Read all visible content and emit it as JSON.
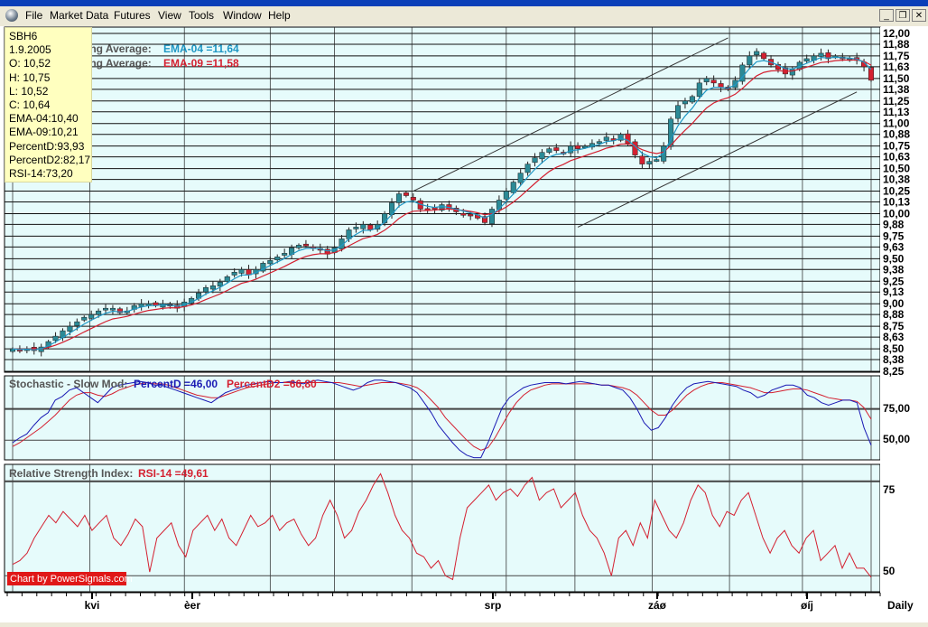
{
  "window": {
    "menu": [
      "File",
      "Market Data",
      "Futures",
      "View",
      "Tools",
      "Window",
      "Help"
    ],
    "controls": {
      "minimize": "_",
      "restore": "❐",
      "close": "✕"
    }
  },
  "legend": [
    "SBH6",
    "1.9.2005",
    "O: 10,52",
    "H: 10,75",
    "L: 10,52",
    "C: 10,64",
    "EMA-04:10,40",
    "EMA-09:10,21",
    "PercentD:93,93",
    "PercentD2:82,17",
    "RSI-14:73,20"
  ],
  "price_panel": {
    "title_fragment_1": "ing Average:",
    "title_fragment_2": "ing Average:",
    "ema4_label": "EMA-04 =11,64",
    "ema9_label": "EMA-09 =11,58"
  },
  "stoch_panel": {
    "title": "Stochastic - Slow Mod:",
    "pd_label": "PercentD =46,00",
    "pd2_label": "PercentD2 =66,80",
    "ticks": [
      "75,00",
      "50,00"
    ]
  },
  "rsi_panel": {
    "title": "Relative Strength Index:",
    "rsi_label": "RSI-14 =49,61",
    "ticks": [
      "75",
      "50"
    ],
    "credit": "Chart by PowerSignals.com"
  },
  "x_axis": {
    "month_labels": [
      "kvi",
      "èer",
      "srp",
      "záø",
      "øíj"
    ],
    "period": "Daily"
  },
  "colors": {
    "background": "#e6fbfb",
    "up_candle": "#2b8a96",
    "down_candle": "#d42030",
    "ema4": "#1f97c4",
    "ema9": "#d42030",
    "percentD": "#1a1ab4",
    "percentD2": "#d42030",
    "rsi": "#d42030"
  },
  "chart_data": [
    {
      "type": "candlestick",
      "symbol": "SBH6",
      "y_ticks": [
        "12,00",
        "11,88",
        "11,75",
        "11,63",
        "11,50",
        "11,38",
        "11,25",
        "11,13",
        "11,00",
        "10,88",
        "10,75",
        "10,63",
        "10,50",
        "10,38",
        "10,25",
        "10,13",
        "10,00",
        "9,88",
        "9,75",
        "9,63",
        "9,50",
        "9,38",
        "9,25",
        "9,13",
        "9,00",
        "8,88",
        "8,75",
        "8,63",
        "8,50",
        "8,38",
        "8,25"
      ],
      "ylim": [
        8.25,
        12.0
      ],
      "x_labels": [
        "kvi",
        "èer",
        "srp",
        "záø",
        "øíj"
      ],
      "closes": [
        8.5,
        8.48,
        8.5,
        8.48,
        8.52,
        8.58,
        8.64,
        8.7,
        8.75,
        8.8,
        8.85,
        8.88,
        8.92,
        8.95,
        8.95,
        8.9,
        8.92,
        8.98,
        9.0,
        9.0,
        8.98,
        9.0,
        8.98,
        8.95,
        9.02,
        9.06,
        9.12,
        9.18,
        9.2,
        9.24,
        9.3,
        9.35,
        9.38,
        9.32,
        9.38,
        9.45,
        9.48,
        9.52,
        9.56,
        9.62,
        9.65,
        9.65,
        9.62,
        9.6,
        9.55,
        9.62,
        9.72,
        9.82,
        9.85,
        9.88,
        9.82,
        9.88,
        10.0,
        10.12,
        10.22,
        10.2,
        10.15,
        10.05,
        10.05,
        10.05,
        10.1,
        10.05,
        10.02,
        10.0,
        9.98,
        9.95,
        9.9,
        10.05,
        10.15,
        10.25,
        10.35,
        10.45,
        10.55,
        10.62,
        10.68,
        10.72,
        10.7,
        10.68,
        10.75,
        10.72,
        10.75,
        10.78,
        10.8,
        10.85,
        10.82,
        10.88,
        10.78,
        10.65,
        10.55,
        10.58,
        10.6,
        10.75,
        11.05,
        11.2,
        11.25,
        11.3,
        11.45,
        11.5,
        11.45,
        11.4,
        11.38,
        11.48,
        11.65,
        11.75,
        11.8,
        11.72,
        11.65,
        11.6,
        11.55,
        11.6,
        11.68,
        11.72,
        11.75,
        11.78,
        11.72,
        11.75,
        11.72,
        11.72,
        11.7,
        11.63,
        11.48
      ],
      "series": [
        {
          "name": "EMA-04",
          "last": 11.64
        },
        {
          "name": "EMA-09",
          "last": 11.58
        }
      ],
      "legend_values": {
        "O": 10.52,
        "H": 10.75,
        "L": 10.52,
        "C": 10.64,
        "EMA-04": 10.4,
        "EMA-09": 10.21
      }
    },
    {
      "type": "line",
      "title": "Stochastic - Slow Mod:",
      "y_ticks": [
        "75,00",
        "50,00"
      ],
      "ylim": [
        35,
        100
      ],
      "series": [
        {
          "name": "PercentD",
          "last": 46.0,
          "values": [
            48,
            52,
            55,
            62,
            68,
            72,
            82,
            85,
            90,
            92,
            88,
            84,
            80,
            86,
            92,
            94,
            95,
            96,
            97,
            96,
            94,
            94,
            92,
            90,
            88,
            86,
            84,
            82,
            80,
            84,
            88,
            90,
            92,
            94,
            95,
            96,
            97,
            96,
            96,
            97,
            96,
            95,
            97,
            98,
            97,
            96,
            94,
            92,
            90,
            92,
            96,
            98,
            98,
            97,
            96,
            94,
            92,
            88,
            80,
            72,
            62,
            55,
            48,
            42,
            38,
            36,
            36,
            48,
            62,
            76,
            84,
            88,
            92,
            94,
            95,
            96,
            96,
            96,
            95,
            96,
            97,
            96,
            95,
            94,
            94,
            92,
            90,
            84,
            75,
            64,
            58,
            60,
            68,
            78,
            86,
            92,
            95,
            96,
            97,
            96,
            95,
            94,
            93,
            90,
            88,
            84,
            86,
            90,
            92,
            94,
            94,
            92,
            86,
            84,
            80,
            78,
            80,
            82,
            82,
            80,
            60,
            46
          ]
        },
        {
          "name": "PercentD2",
          "last": 66.8,
          "values": [
            45,
            48,
            52,
            56,
            60,
            65,
            70,
            76,
            82,
            86,
            88,
            88,
            86,
            85,
            87,
            90,
            92,
            94,
            95,
            96,
            95,
            95,
            94,
            92,
            90,
            88,
            86,
            85,
            84,
            84,
            86,
            88,
            90,
            92,
            93,
            94,
            95,
            96,
            96,
            96,
            96,
            96,
            96,
            96,
            96,
            96,
            96,
            95,
            94,
            93,
            94,
            95,
            96,
            96,
            96,
            95,
            94,
            92,
            88,
            82,
            76,
            68,
            62,
            56,
            50,
            45,
            42,
            44,
            52,
            62,
            72,
            80,
            86,
            90,
            92,
            94,
            95,
            95,
            95,
            95,
            95,
            95,
            95,
            94,
            94,
            93,
            92,
            90,
            86,
            80,
            74,
            70,
            70,
            74,
            80,
            86,
            90,
            93,
            95,
            96,
            96,
            95,
            94,
            93,
            92,
            90,
            88,
            88,
            89,
            90,
            91,
            91,
            90,
            88,
            86,
            84,
            83,
            82,
            82,
            81,
            76,
            66.8
          ]
        }
      ]
    },
    {
      "type": "line",
      "title": "Relative Strength Index:",
      "y_ticks": [
        "75",
        "50"
      ],
      "ylim": [
        46,
        79
      ],
      "series": [
        {
          "name": "RSI-14",
          "last": 49.61,
          "values": [
            53,
            54,
            56,
            60,
            63,
            66,
            64,
            67,
            65,
            63,
            66,
            62,
            64,
            66,
            60,
            58,
            61,
            65,
            63,
            51,
            60,
            62,
            64,
            58,
            55,
            62,
            64,
            66,
            62,
            65,
            60,
            58,
            62,
            66,
            63,
            64,
            66,
            62,
            64,
            65,
            61,
            58,
            60,
            66,
            70,
            66,
            60,
            62,
            67,
            70,
            74,
            77,
            72,
            66,
            62,
            60,
            56,
            55,
            52,
            54,
            50,
            49,
            60,
            68,
            70,
            72,
            74,
            70,
            72,
            73,
            71,
            74,
            76,
            70,
            72,
            73,
            68,
            70,
            72,
            66,
            62,
            60,
            56,
            50,
            60,
            62,
            58,
            64,
            60,
            70,
            66,
            62,
            60,
            64,
            70,
            74,
            72,
            66,
            63,
            67,
            66,
            70,
            72,
            66,
            60,
            56,
            60,
            62,
            58,
            56,
            60,
            62,
            54,
            56,
            58,
            52,
            56,
            52,
            52,
            49.61
          ]
        }
      ]
    }
  ]
}
